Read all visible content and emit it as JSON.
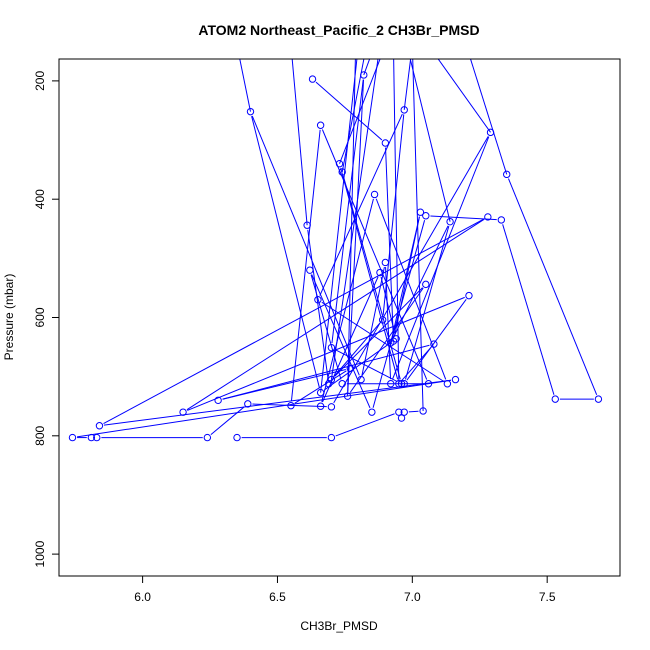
{
  "chart_data": {
    "type": "line",
    "title": "ATOM2 Northeast_Pacific_2 CH3Br_PMSD",
    "xlabel": "CH3Br_PMSD",
    "ylabel": "Pressure (mbar)",
    "xlim": [
      5.69,
      7.77
    ],
    "ylim": [
      1037,
      163
    ],
    "y_reversed": true,
    "grid": false,
    "xticks": [
      6.0,
      6.5,
      7.0,
      7.5
    ],
    "xtick_labels": [
      "6.0",
      "6.5",
      "7.0",
      "7.5"
    ],
    "yticks": [
      200,
      400,
      600,
      800,
      1000
    ],
    "ytick_labels": [
      "200",
      "400",
      "600",
      "800",
      "1000"
    ],
    "color": "#0000ff",
    "marker": "open-circle",
    "series": [
      {
        "points": [
          {
            "x": 6.63,
            "y": 197
          },
          {
            "x": 6.9,
            "y": 305
          },
          {
            "x": 6.93,
            "y": 640
          },
          {
            "x": 7.03,
            "y": 422
          },
          {
            "x": 6.92,
            "y": 643
          },
          {
            "x": 7.14,
            "y": 438
          },
          {
            "x": 6.97,
            "y": 712
          },
          {
            "x": 7.21,
            "y": 563
          },
          {
            "x": 6.15,
            "y": 760
          },
          {
            "x": 7.28,
            "y": 430
          },
          {
            "x": 5.84,
            "y": 783
          },
          {
            "x": 7.16,
            "y": 705
          },
          {
            "x": 5.74,
            "y": 803
          },
          {
            "x": 5.81,
            "y": 803
          },
          {
            "x": 5.83,
            "y": 803
          },
          {
            "x": 6.24,
            "y": 803
          },
          {
            "x": 6.39,
            "y": 746
          },
          {
            "x": 6.7,
            "y": 751
          },
          {
            "x": 7.29,
            "y": 287
          },
          {
            "x": 6.92,
            "y": 712
          },
          {
            "x": 6.9,
            "y": 507
          },
          {
            "x": 6.81,
            "y": 705
          },
          {
            "x": 6.4,
            "y": 252
          },
          {
            "x": 6.66,
            "y": 727
          },
          {
            "x": 6.94,
            "y": 636
          },
          {
            "x": 6.88,
            "y": 524
          },
          {
            "x": 6.66,
            "y": 750
          },
          {
            "x": 6.86,
            "y": 392
          },
          {
            "x": 7.13,
            "y": 712
          },
          {
            "x": 6.65,
            "y": 570
          },
          {
            "x": 6.97,
            "y": 249
          },
          {
            "x": 6.89,
            "y": 604
          },
          {
            "x": 6.7,
            "y": 705
          },
          {
            "x": 7.05,
            "y": 544
          },
          {
            "x": 6.76,
            "y": 733
          },
          {
            "x": 6.82,
            "y": 190
          },
          {
            "x": 6.7,
            "y": 651
          },
          {
            "x": 6.96,
            "y": 712
          },
          {
            "x": 6.74,
            "y": 354
          }
        ]
      },
      {
        "points": [
          {
            "x": 6.73,
            "y": 340
          },
          {
            "x": 6.95,
            "y": 712
          },
          {
            "x": 7.08,
            "y": 645
          },
          {
            "x": 6.28,
            "y": 740
          },
          {
            "x": 6.77,
            "y": 686
          },
          {
            "x": 6.55,
            "y": 749
          },
          {
            "x": 6.66,
            "y": 275
          },
          {
            "x": 7.06,
            "y": 712
          },
          {
            "x": 6.74,
            "y": 712
          },
          {
            "x": 6.62,
            "y": 520
          },
          {
            "x": 6.85,
            "y": 760
          },
          {
            "x": 7.05,
            "y": 428
          },
          {
            "x": 7.33,
            "y": 435
          },
          {
            "x": 7.53,
            "y": 738
          },
          {
            "x": 7.69,
            "y": 738
          },
          {
            "x": 7.35,
            "y": 358
          }
        ]
      },
      {
        "points": [
          {
            "x": 6.35,
            "y": 803
          },
          {
            "x": 6.7,
            "y": 803
          },
          {
            "x": 6.95,
            "y": 760
          },
          {
            "x": 6.96,
            "y": 770
          },
          {
            "x": 6.97,
            "y": 760
          },
          {
            "x": 7.04,
            "y": 758
          }
        ]
      },
      {
        "points": [
          {
            "x": 6.69,
            "y": 712
          },
          {
            "x": 6.61,
            "y": 444
          }
        ]
      }
    ],
    "offscreen_segments": [
      {
        "from": {
          "x": 6.7,
          "y": 705
        },
        "to": {
          "x": 6.88,
          "y": 140
        }
      },
      {
        "from": {
          "x": 6.76,
          "y": 733
        },
        "to": {
          "x": 6.79,
          "y": 140
        }
      },
      {
        "from": {
          "x": 6.82,
          "y": 190
        },
        "to": {
          "x": 6.86,
          "y": 140
        }
      },
      {
        "from": {
          "x": 6.74,
          "y": 354
        },
        "to": {
          "x": 6.83,
          "y": 140
        }
      },
      {
        "from": {
          "x": 6.73,
          "y": 340
        },
        "to": {
          "x": 6.9,
          "y": 140
        }
      },
      {
        "from": {
          "x": 6.4,
          "y": 252
        },
        "to": {
          "x": 6.35,
          "y": 140
        }
      },
      {
        "from": {
          "x": 6.66,
          "y": 727
        },
        "to": {
          "x": 6.8,
          "y": 140
        }
      },
      {
        "from": {
          "x": 6.61,
          "y": 444
        },
        "to": {
          "x": 6.55,
          "y": 140
        }
      },
      {
        "from": {
          "x": 6.97,
          "y": 249
        },
        "to": {
          "x": 7.0,
          "y": 140
        }
      },
      {
        "from": {
          "x": 7.29,
          "y": 287
        },
        "to": {
          "x": 7.06,
          "y": 140
        }
      },
      {
        "from": {
          "x": 7.35,
          "y": 358
        },
        "to": {
          "x": 7.2,
          "y": 140
        }
      },
      {
        "from": {
          "x": 7.04,
          "y": 758
        },
        "to": {
          "x": 7.0,
          "y": 140
        }
      },
      {
        "from": {
          "x": 7.14,
          "y": 438
        },
        "to": {
          "x": 6.98,
          "y": 140
        }
      },
      {
        "from": {
          "x": 6.95,
          "y": 712
        },
        "to": {
          "x": 6.93,
          "y": 140
        }
      }
    ]
  }
}
